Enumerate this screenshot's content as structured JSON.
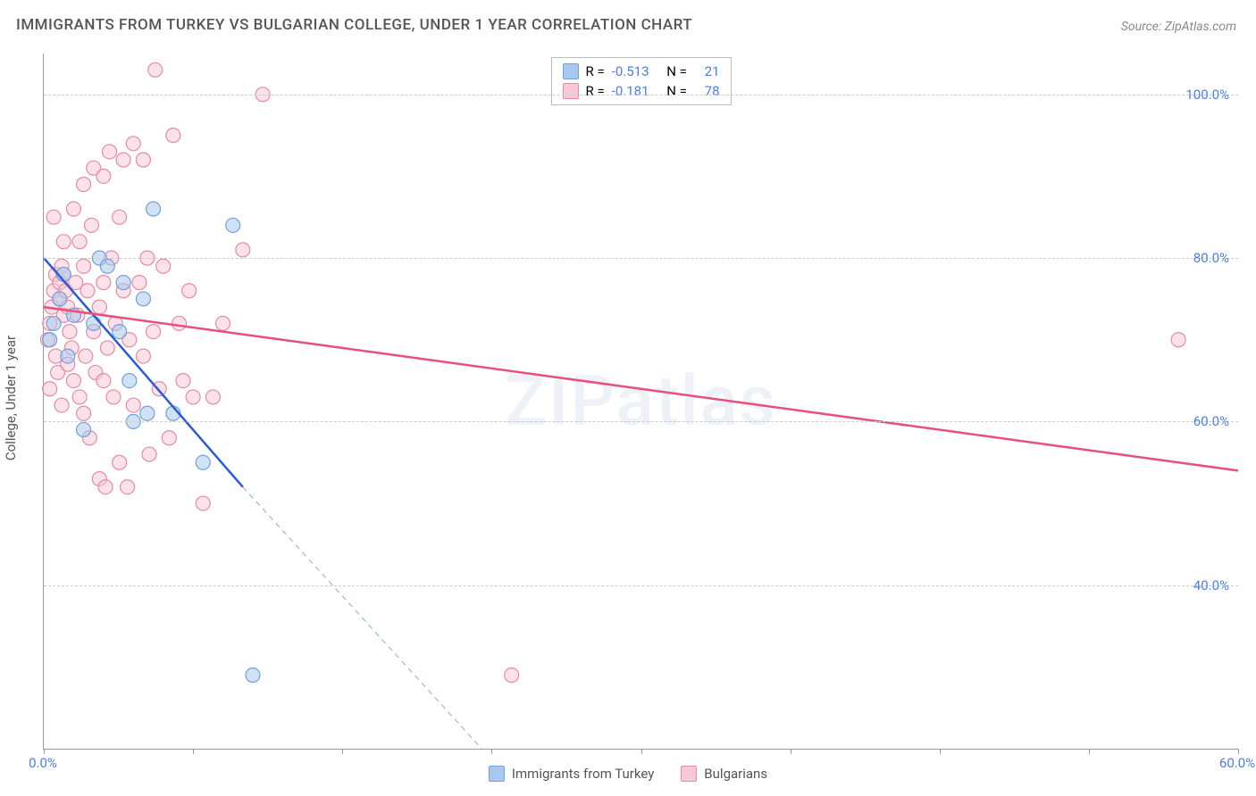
{
  "title": "IMMIGRANTS FROM TURKEY VS BULGARIAN COLLEGE, UNDER 1 YEAR CORRELATION CHART",
  "source": "Source: ZipAtlas.com",
  "ylabel": "College, Under 1 year",
  "watermark": "ZIPatlas",
  "chart": {
    "type": "scatter-with-regression",
    "xlim": [
      0,
      60
    ],
    "ylim": [
      20,
      105
    ],
    "ytick_values": [
      40,
      60,
      80,
      100
    ],
    "ytick_labels": [
      "40.0%",
      "60.0%",
      "80.0%",
      "100.0%"
    ],
    "xtick_positions": [
      0,
      7.5,
      15,
      22.5,
      30,
      37.5,
      45,
      52.5,
      60
    ],
    "x_first_label": "0.0%",
    "x_last_label": "60.0%",
    "grid_color": "#cccccc",
    "axis_color": "#999999",
    "background_color": "#ffffff",
    "marker_radius": 8,
    "marker_opacity": 0.55,
    "series": [
      {
        "name": "Immigrants from Turkey",
        "color_fill": "#a9c8ef",
        "color_stroke": "#6fa1dd",
        "r_value": "-0.513",
        "n_value": "21",
        "regression": {
          "x1": 0,
          "y1": 80,
          "x2": 10,
          "y2": 52,
          "color": "#2a5bd7",
          "width": 2.5
        },
        "extension": {
          "x1": 10,
          "y1": 52,
          "x2": 22,
          "y2": 20,
          "color": "#9aa",
          "dash": "6,5",
          "width": 1
        },
        "points": [
          {
            "x": 0.3,
            "y": 70
          },
          {
            "x": 0.5,
            "y": 72
          },
          {
            "x": 0.8,
            "y": 75
          },
          {
            "x": 1.0,
            "y": 78
          },
          {
            "x": 1.2,
            "y": 68
          },
          {
            "x": 2.8,
            "y": 80
          },
          {
            "x": 3.2,
            "y": 79
          },
          {
            "x": 4.0,
            "y": 77
          },
          {
            "x": 3.8,
            "y": 71
          },
          {
            "x": 5.5,
            "y": 86
          },
          {
            "x": 4.3,
            "y": 65
          },
          {
            "x": 4.5,
            "y": 60
          },
          {
            "x": 5.2,
            "y": 61
          },
          {
            "x": 5.0,
            "y": 75
          },
          {
            "x": 8.0,
            "y": 55
          },
          {
            "x": 6.5,
            "y": 61
          },
          {
            "x": 9.5,
            "y": 84
          },
          {
            "x": 2.0,
            "y": 59
          },
          {
            "x": 1.5,
            "y": 73
          },
          {
            "x": 10.5,
            "y": 29
          },
          {
            "x": 2.5,
            "y": 72
          }
        ]
      },
      {
        "name": "Bulgarians",
        "color_fill": "#f7c8d5",
        "color_stroke": "#e88aa6",
        "r_value": "-0.181",
        "n_value": "78",
        "regression": {
          "x1": 0,
          "y1": 74,
          "x2": 60,
          "y2": 54,
          "color": "#e84f7d",
          "width": 2.5
        },
        "points": [
          {
            "x": 0.2,
            "y": 70
          },
          {
            "x": 0.3,
            "y": 72
          },
          {
            "x": 0.4,
            "y": 74
          },
          {
            "x": 0.5,
            "y": 76
          },
          {
            "x": 0.6,
            "y": 78
          },
          {
            "x": 0.6,
            "y": 68
          },
          {
            "x": 0.7,
            "y": 66
          },
          {
            "x": 0.8,
            "y": 75
          },
          {
            "x": 0.8,
            "y": 77
          },
          {
            "x": 0.9,
            "y": 79
          },
          {
            "x": 1.0,
            "y": 73
          },
          {
            "x": 1.0,
            "y": 78
          },
          {
            "x": 1.1,
            "y": 76
          },
          {
            "x": 1.2,
            "y": 74
          },
          {
            "x": 1.2,
            "y": 67
          },
          {
            "x": 1.3,
            "y": 71
          },
          {
            "x": 1.4,
            "y": 69
          },
          {
            "x": 1.5,
            "y": 65
          },
          {
            "x": 1.5,
            "y": 86
          },
          {
            "x": 1.6,
            "y": 77
          },
          {
            "x": 1.7,
            "y": 73
          },
          {
            "x": 1.8,
            "y": 82
          },
          {
            "x": 1.8,
            "y": 63
          },
          {
            "x": 2.0,
            "y": 79
          },
          {
            "x": 2.0,
            "y": 61
          },
          {
            "x": 2.1,
            "y": 68
          },
          {
            "x": 2.2,
            "y": 76
          },
          {
            "x": 2.3,
            "y": 58
          },
          {
            "x": 2.4,
            "y": 84
          },
          {
            "x": 2.5,
            "y": 91
          },
          {
            "x": 2.5,
            "y": 71
          },
          {
            "x": 2.6,
            "y": 66
          },
          {
            "x": 2.8,
            "y": 74
          },
          {
            "x": 2.8,
            "y": 53
          },
          {
            "x": 3.0,
            "y": 90
          },
          {
            "x": 3.0,
            "y": 77
          },
          {
            "x": 3.1,
            "y": 52
          },
          {
            "x": 3.2,
            "y": 69
          },
          {
            "x": 3.3,
            "y": 93
          },
          {
            "x": 3.4,
            "y": 80
          },
          {
            "x": 3.5,
            "y": 63
          },
          {
            "x": 3.6,
            "y": 72
          },
          {
            "x": 3.8,
            "y": 85
          },
          {
            "x": 3.8,
            "y": 55
          },
          {
            "x": 4.0,
            "y": 76
          },
          {
            "x": 4.2,
            "y": 52
          },
          {
            "x": 4.3,
            "y": 70
          },
          {
            "x": 4.5,
            "y": 94
          },
          {
            "x": 4.5,
            "y": 62
          },
          {
            "x": 4.8,
            "y": 77
          },
          {
            "x": 5.0,
            "y": 92
          },
          {
            "x": 5.0,
            "y": 68
          },
          {
            "x": 5.3,
            "y": 56
          },
          {
            "x": 5.5,
            "y": 71
          },
          {
            "x": 5.6,
            "y": 103
          },
          {
            "x": 5.8,
            "y": 64
          },
          {
            "x": 6.0,
            "y": 79
          },
          {
            "x": 6.3,
            "y": 58
          },
          {
            "x": 6.5,
            "y": 95
          },
          {
            "x": 6.8,
            "y": 72
          },
          {
            "x": 7.0,
            "y": 65
          },
          {
            "x": 7.3,
            "y": 76
          },
          {
            "x": 7.5,
            "y": 63
          },
          {
            "x": 8.0,
            "y": 50
          },
          {
            "x": 8.5,
            "y": 63
          },
          {
            "x": 9.0,
            "y": 72
          },
          {
            "x": 10.0,
            "y": 81
          },
          {
            "x": 11.0,
            "y": 100
          },
          {
            "x": 3.0,
            "y": 65
          },
          {
            "x": 1.0,
            "y": 82
          },
          {
            "x": 0.5,
            "y": 85
          },
          {
            "x": 2.0,
            "y": 89
          },
          {
            "x": 4.0,
            "y": 92
          },
          {
            "x": 5.2,
            "y": 80
          },
          {
            "x": 23.5,
            "y": 29
          },
          {
            "x": 57.0,
            "y": 70
          },
          {
            "x": 0.3,
            "y": 64
          },
          {
            "x": 0.9,
            "y": 62
          }
        ]
      }
    ]
  },
  "legend_top": {
    "r_label": "R =",
    "n_label": "N ="
  },
  "x_legend": {
    "label1": "Immigrants from Turkey",
    "label2": "Bulgarians"
  }
}
